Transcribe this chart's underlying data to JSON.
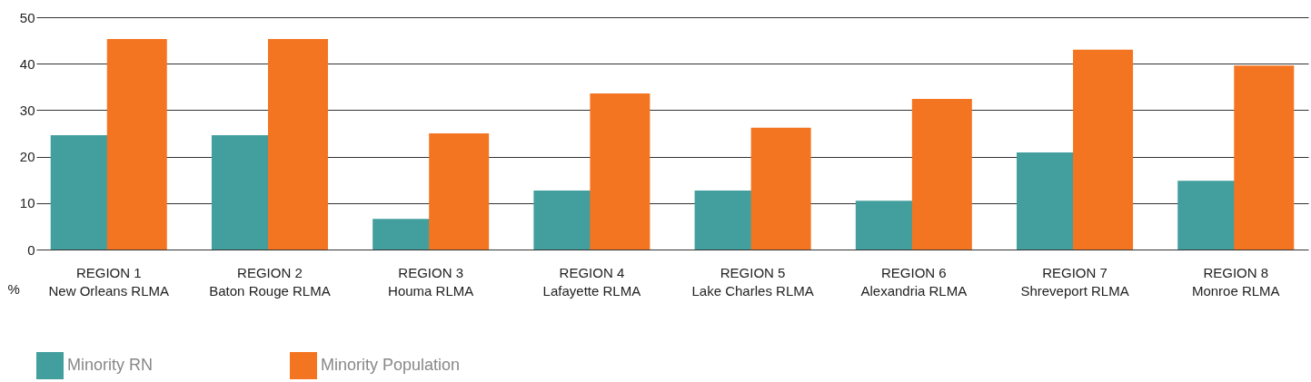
{
  "chart_data": {
    "type": "bar",
    "ylabel": "%",
    "categories": [
      "REGION 1\nNew Orleans RLMA",
      "REGION 2\nBaton Rouge RLMA",
      "REGION 3\nHouma RLMA",
      "REGION 4\nLafayette RLMA",
      "REGION 5\nLake Charles RLMA",
      "REGION 6\nAlexandria RLMA",
      "REGION 7\nShreveport RLMA",
      "REGION 8\nMonroe RLMA"
    ],
    "series": [
      {
        "name": "Minority RN",
        "color": "#439e9e",
        "values": [
          24.6,
          24.6,
          6.6,
          12.7,
          12.7,
          10.5,
          20.9,
          14.8
        ]
      },
      {
        "name": "Minority Population",
        "color": "#f47521",
        "values": [
          45.3,
          45.3,
          25,
          33.6,
          26.2,
          32.4,
          43,
          39.6
        ]
      }
    ],
    "ylim": [
      0,
      50
    ],
    "yticks": [
      0,
      10,
      20,
      30,
      40,
      50
    ],
    "grid": "y",
    "legend": "bottom"
  }
}
